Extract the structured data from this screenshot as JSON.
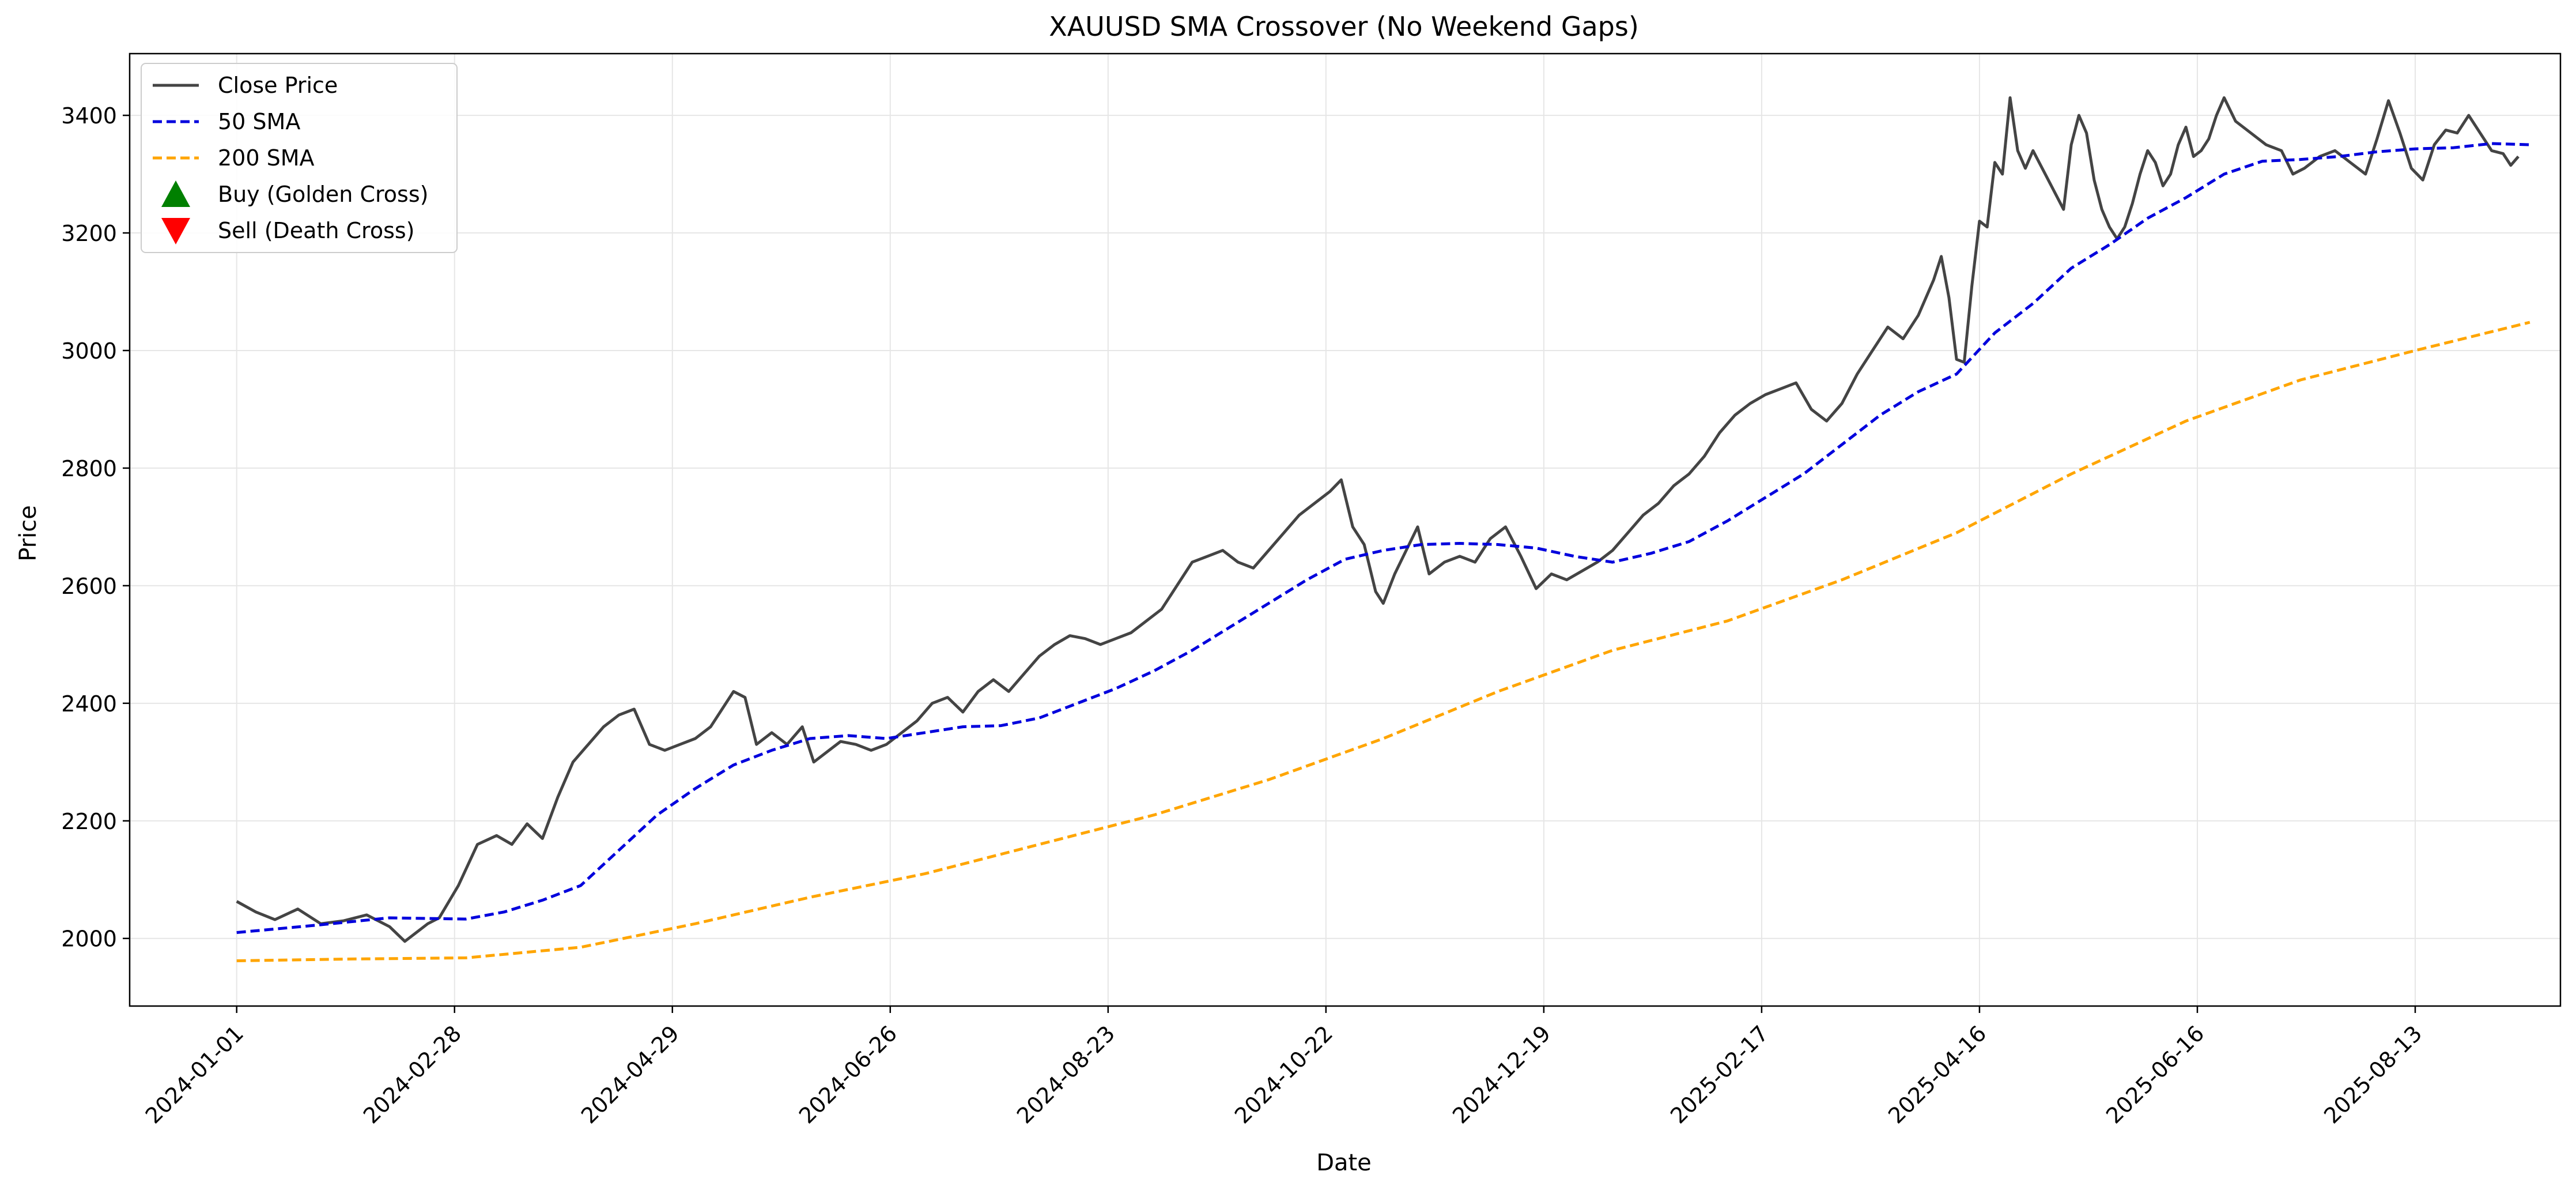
{
  "chart_data": {
    "type": "line",
    "title": "XAUUSD SMA Crossover (No Weekend Gaps)",
    "xlabel": "Date",
    "ylabel": "Price",
    "x_tick_labels": [
      "2024-01-01",
      "2024-02-28",
      "2024-04-29",
      "2024-06-26",
      "2024-08-23",
      "2024-10-22",
      "2024-12-19",
      "2025-02-17",
      "2025-04-16",
      "2025-06-16",
      "2025-08-13"
    ],
    "x_range": [
      -28,
      608
    ],
    "ylim": [
      1885,
      3505
    ],
    "yticks": [
      2000,
      2200,
      2400,
      2600,
      2800,
      3000,
      3200,
      3400
    ],
    "grid": true,
    "legend_location": "upper-left",
    "colors": {
      "close": "#444444",
      "sma50": "#0000dd",
      "sma200": "#ffa500",
      "buy": "#008000",
      "sell": "#ff0000",
      "grid": "#e6e6e6"
    },
    "legend": [
      {
        "label": "Close Price",
        "marker": "solid-line",
        "color": "#444444"
      },
      {
        "label": "50 SMA",
        "marker": "dashed-line",
        "color": "#0000dd"
      },
      {
        "label": "200 SMA",
        "marker": "dashed-line",
        "color": "#ffa500"
      },
      {
        "label": "Buy (Golden Cross)",
        "marker": "triangle-up",
        "color": "#008000"
      },
      {
        "label": "Sell (Death Cross)",
        "marker": "triangle-down",
        "color": "#ff0000"
      }
    ],
    "series": [
      {
        "name": "Close Price",
        "style": "solid",
        "points": [
          [
            0,
            2063
          ],
          [
            5,
            2045
          ],
          [
            10,
            2032
          ],
          [
            16,
            2050
          ],
          [
            22,
            2025
          ],
          [
            28,
            2030
          ],
          [
            34,
            2040
          ],
          [
            40,
            2020
          ],
          [
            44,
            1995
          ],
          [
            47,
            2010
          ],
          [
            50,
            2025
          ],
          [
            53,
            2035
          ],
          [
            58,
            2090
          ],
          [
            63,
            2160
          ],
          [
            68,
            2175
          ],
          [
            72,
            2160
          ],
          [
            76,
            2195
          ],
          [
            80,
            2170
          ],
          [
            84,
            2240
          ],
          [
            88,
            2300
          ],
          [
            92,
            2330
          ],
          [
            96,
            2360
          ],
          [
            100,
            2380
          ],
          [
            104,
            2390
          ],
          [
            108,
            2330
          ],
          [
            112,
            2320
          ],
          [
            116,
            2330
          ],
          [
            120,
            2340
          ],
          [
            124,
            2360
          ],
          [
            127,
            2390
          ],
          [
            130,
            2420
          ],
          [
            133,
            2410
          ],
          [
            136,
            2330
          ],
          [
            140,
            2350
          ],
          [
            144,
            2330
          ],
          [
            148,
            2360
          ],
          [
            151,
            2300
          ],
          [
            155,
            2320
          ],
          [
            158,
            2335
          ],
          [
            162,
            2330
          ],
          [
            166,
            2320
          ],
          [
            170,
            2330
          ],
          [
            174,
            2350
          ],
          [
            178,
            2370
          ],
          [
            182,
            2400
          ],
          [
            186,
            2410
          ],
          [
            190,
            2385
          ],
          [
            194,
            2420
          ],
          [
            198,
            2440
          ],
          [
            202,
            2420
          ],
          [
            206,
            2450
          ],
          [
            210,
            2480
          ],
          [
            214,
            2500
          ],
          [
            218,
            2515
          ],
          [
            222,
            2510
          ],
          [
            226,
            2500
          ],
          [
            230,
            2510
          ],
          [
            234,
            2520
          ],
          [
            238,
            2540
          ],
          [
            242,
            2560
          ],
          [
            246,
            2600
          ],
          [
            250,
            2640
          ],
          [
            254,
            2650
          ],
          [
            258,
            2660
          ],
          [
            262,
            2640
          ],
          [
            266,
            2630
          ],
          [
            270,
            2660
          ],
          [
            274,
            2690
          ],
          [
            278,
            2720
          ],
          [
            282,
            2740
          ],
          [
            286,
            2760
          ],
          [
            289,
            2780
          ],
          [
            292,
            2700
          ],
          [
            295,
            2670
          ],
          [
            298,
            2590
          ],
          [
            300,
            2570
          ],
          [
            303,
            2620
          ],
          [
            306,
            2660
          ],
          [
            309,
            2700
          ],
          [
            312,
            2620
          ],
          [
            316,
            2640
          ],
          [
            320,
            2650
          ],
          [
            324,
            2640
          ],
          [
            328,
            2680
          ],
          [
            332,
            2700
          ],
          [
            336,
            2650
          ],
          [
            340,
            2595
          ],
          [
            344,
            2620
          ],
          [
            348,
            2610
          ],
          [
            352,
            2625
          ],
          [
            356,
            2640
          ],
          [
            360,
            2660
          ],
          [
            364,
            2690
          ],
          [
            368,
            2720
          ],
          [
            372,
            2740
          ],
          [
            376,
            2770
          ],
          [
            380,
            2790
          ],
          [
            384,
            2820
          ],
          [
            388,
            2860
          ],
          [
            392,
            2890
          ],
          [
            396,
            2910
          ],
          [
            400,
            2925
          ],
          [
            404,
            2935
          ],
          [
            408,
            2945
          ],
          [
            412,
            2900
          ],
          [
            416,
            2880
          ],
          [
            420,
            2910
          ],
          [
            424,
            2960
          ],
          [
            428,
            3000
          ],
          [
            432,
            3040
          ],
          [
            436,
            3020
          ],
          [
            440,
            3060
          ],
          [
            444,
            3120
          ],
          [
            446,
            3160
          ],
          [
            448,
            3090
          ],
          [
            450,
            2985
          ],
          [
            452,
            2980
          ],
          [
            454,
            3110
          ],
          [
            456,
            3220
          ],
          [
            458,
            3210
          ],
          [
            460,
            3320
          ],
          [
            462,
            3300
          ],
          [
            464,
            3430
          ],
          [
            466,
            3340
          ],
          [
            468,
            3310
          ],
          [
            470,
            3340
          ],
          [
            474,
            3290
          ],
          [
            478,
            3240
          ],
          [
            480,
            3350
          ],
          [
            482,
            3400
          ],
          [
            484,
            3370
          ],
          [
            486,
            3290
          ],
          [
            488,
            3240
          ],
          [
            490,
            3210
          ],
          [
            492,
            3190
          ],
          [
            494,
            3210
          ],
          [
            496,
            3250
          ],
          [
            498,
            3300
          ],
          [
            500,
            3340
          ],
          [
            502,
            3320
          ],
          [
            504,
            3280
          ],
          [
            506,
            3300
          ],
          [
            508,
            3350
          ],
          [
            510,
            3380
          ],
          [
            512,
            3330
          ],
          [
            514,
            3340
          ],
          [
            516,
            3360
          ],
          [
            518,
            3400
          ],
          [
            520,
            3430
          ],
          [
            523,
            3390
          ],
          [
            527,
            3370
          ],
          [
            531,
            3350
          ],
          [
            535,
            3340
          ],
          [
            538,
            3300
          ],
          [
            541,
            3310
          ],
          [
            545,
            3330
          ],
          [
            549,
            3340
          ],
          [
            553,
            3320
          ],
          [
            557,
            3300
          ],
          [
            560,
            3360
          ],
          [
            563,
            3425
          ],
          [
            566,
            3370
          ],
          [
            569,
            3310
          ],
          [
            572,
            3290
          ],
          [
            575,
            3350
          ],
          [
            578,
            3375
          ],
          [
            581,
            3370
          ],
          [
            584,
            3400
          ],
          [
            587,
            3370
          ],
          [
            590,
            3340
          ],
          [
            593,
            3335
          ],
          [
            595,
            3315
          ],
          [
            597,
            3330
          ]
        ]
      },
      {
        "name": "50 SMA",
        "style": "dashed",
        "points": [
          [
            0,
            2010
          ],
          [
            20,
            2022
          ],
          [
            40,
            2035
          ],
          [
            60,
            2033
          ],
          [
            70,
            2045
          ],
          [
            80,
            2065
          ],
          [
            90,
            2090
          ],
          [
            100,
            2150
          ],
          [
            110,
            2210
          ],
          [
            120,
            2255
          ],
          [
            130,
            2295
          ],
          [
            140,
            2320
          ],
          [
            150,
            2340
          ],
          [
            160,
            2345
          ],
          [
            170,
            2340
          ],
          [
            180,
            2350
          ],
          [
            190,
            2360
          ],
          [
            200,
            2362
          ],
          [
            210,
            2375
          ],
          [
            220,
            2400
          ],
          [
            230,
            2425
          ],
          [
            240,
            2455
          ],
          [
            250,
            2490
          ],
          [
            260,
            2530
          ],
          [
            270,
            2570
          ],
          [
            280,
            2610
          ],
          [
            290,
            2645
          ],
          [
            300,
            2660
          ],
          [
            310,
            2670
          ],
          [
            320,
            2672
          ],
          [
            330,
            2670
          ],
          [
            340,
            2664
          ],
          [
            350,
            2650
          ],
          [
            360,
            2640
          ],
          [
            370,
            2655
          ],
          [
            380,
            2675
          ],
          [
            390,
            2710
          ],
          [
            400,
            2750
          ],
          [
            410,
            2790
          ],
          [
            420,
            2840
          ],
          [
            430,
            2890
          ],
          [
            440,
            2930
          ],
          [
            450,
            2960
          ],
          [
            460,
            3030
          ],
          [
            470,
            3080
          ],
          [
            480,
            3140
          ],
          [
            490,
            3180
          ],
          [
            500,
            3225
          ],
          [
            510,
            3260
          ],
          [
            520,
            3300
          ],
          [
            530,
            3322
          ],
          [
            540,
            3325
          ],
          [
            550,
            3330
          ],
          [
            560,
            3338
          ],
          [
            570,
            3343
          ],
          [
            580,
            3345
          ],
          [
            590,
            3352
          ],
          [
            600,
            3350
          ]
        ]
      },
      {
        "name": "200 SMA",
        "style": "dashed",
        "points": [
          [
            0,
            1962
          ],
          [
            30,
            1965
          ],
          [
            60,
            1967
          ],
          [
            90,
            1985
          ],
          [
            120,
            2025
          ],
          [
            150,
            2070
          ],
          [
            180,
            2110
          ],
          [
            210,
            2160
          ],
          [
            240,
            2210
          ],
          [
            270,
            2270
          ],
          [
            300,
            2340
          ],
          [
            330,
            2420
          ],
          [
            360,
            2490
          ],
          [
            390,
            2540
          ],
          [
            420,
            2610
          ],
          [
            450,
            2690
          ],
          [
            480,
            2790
          ],
          [
            510,
            2880
          ],
          [
            540,
            2950
          ],
          [
            570,
            3000
          ],
          [
            600,
            3048
          ]
        ]
      }
    ],
    "signals": {
      "buy": [],
      "sell": []
    }
  }
}
